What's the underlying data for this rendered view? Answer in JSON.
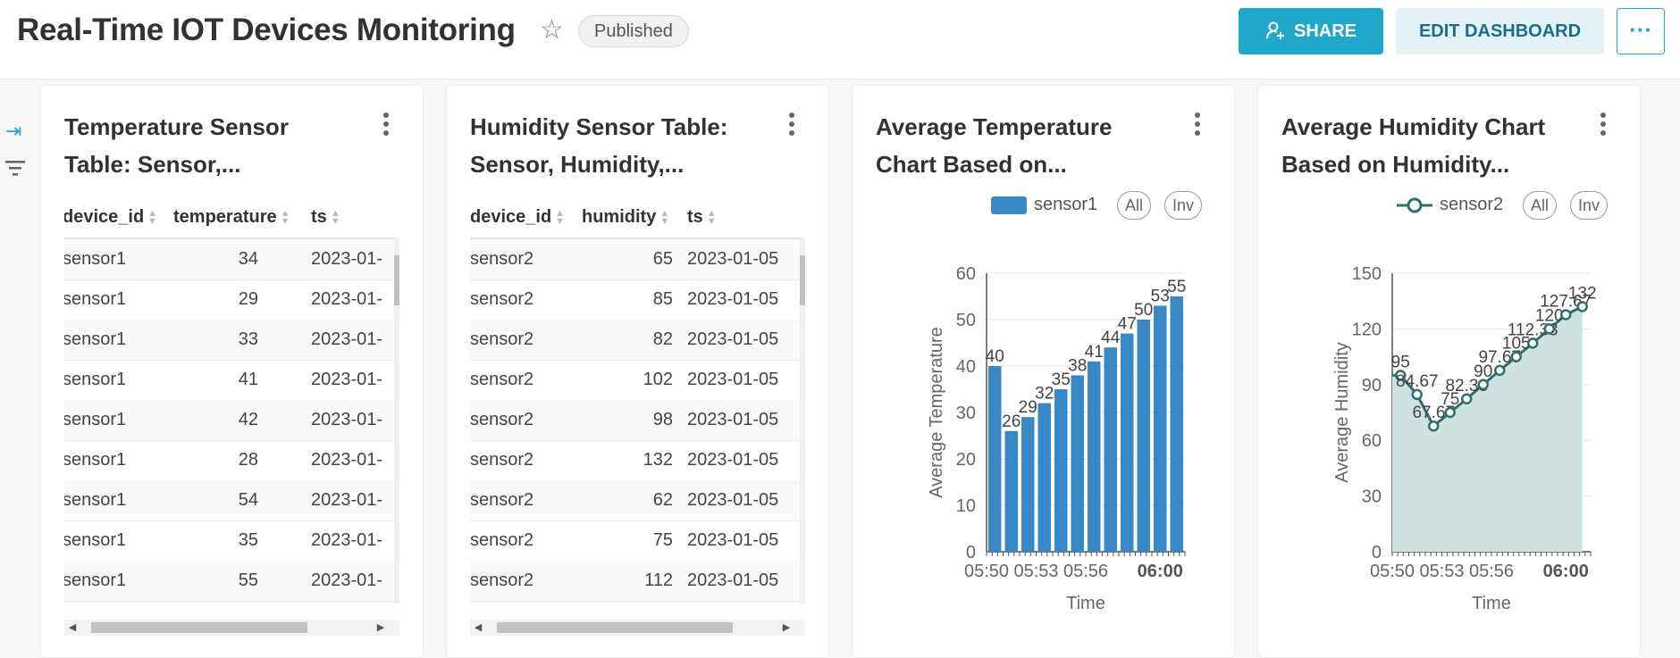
{
  "header": {
    "title": "Real-Time IOT Devices Monitoring",
    "badge": "Published",
    "share_label": "SHARE",
    "edit_label": "EDIT DASHBOARD",
    "more_label": "···"
  },
  "rail": {
    "expand_icon": "expand-icon",
    "filter_icon": "filter-icon"
  },
  "cards": [
    {
      "title": "Temperature Sensor Table: Sensor,...",
      "columns": [
        "device_id",
        "temperature",
        "ts"
      ],
      "rows": [
        [
          "sensor1",
          "34",
          "2023-01-"
        ],
        [
          "sensor1",
          "29",
          "2023-01-"
        ],
        [
          "sensor1",
          "33",
          "2023-01-"
        ],
        [
          "sensor1",
          "41",
          "2023-01-"
        ],
        [
          "sensor1",
          "42",
          "2023-01-"
        ],
        [
          "sensor1",
          "28",
          "2023-01-"
        ],
        [
          "sensor1",
          "54",
          "2023-01-"
        ],
        [
          "sensor1",
          "35",
          "2023-01-"
        ],
        [
          "sensor1",
          "55",
          "2023-01-"
        ]
      ]
    },
    {
      "title": "Humidity Sensor Table: Sensor, Humidity,...",
      "columns": [
        "device_id",
        "humidity",
        "ts"
      ],
      "rows": [
        [
          "sensor2",
          "65",
          "2023-01-05"
        ],
        [
          "sensor2",
          "85",
          "2023-01-05"
        ],
        [
          "sensor2",
          "82",
          "2023-01-05"
        ],
        [
          "sensor2",
          "102",
          "2023-01-05"
        ],
        [
          "sensor2",
          "98",
          "2023-01-05"
        ],
        [
          "sensor2",
          "132",
          "2023-01-05"
        ],
        [
          "sensor2",
          "62",
          "2023-01-05"
        ],
        [
          "sensor2",
          "75",
          "2023-01-05"
        ],
        [
          "sensor2",
          "112",
          "2023-01-05"
        ]
      ]
    },
    {
      "title": "Average Temperature Chart Based on...",
      "legend": {
        "series": "sensor1",
        "all": "All",
        "inv": "Inv"
      }
    },
    {
      "title": "Average Humidity Chart Based on Humidity...",
      "legend": {
        "series": "sensor2",
        "all": "All",
        "inv": "Inv"
      }
    }
  ],
  "chart_data": [
    {
      "type": "bar",
      "title": "",
      "xlabel": "Time",
      "ylabel": "Average Temperature",
      "x_ticks": [
        "05:50",
        "05:53",
        "05:56",
        "06:00"
      ],
      "x_ticks_bold": "06:00",
      "y_ticks": [
        0,
        10,
        20,
        30,
        40,
        50,
        60
      ],
      "ylim": [
        0,
        60
      ],
      "color": "#3a87c6",
      "series": [
        {
          "name": "sensor1",
          "values": [
            40,
            26,
            29,
            32,
            35,
            38,
            41,
            44,
            47,
            50,
            53,
            55
          ]
        }
      ],
      "data_labels": [
        "40",
        "26",
        "29",
        "32",
        "35",
        "38",
        "41",
        "44",
        "47",
        "50",
        "53",
        "55"
      ],
      "grid": true,
      "legend": "top-right"
    },
    {
      "type": "area",
      "title": "",
      "xlabel": "Time",
      "ylabel": "Average Humidity",
      "x_ticks": [
        "05:50",
        "05:53",
        "05:56",
        "06:00"
      ],
      "x_ticks_bold": "06:00",
      "y_ticks": [
        0,
        30,
        60,
        90,
        120,
        150
      ],
      "ylim": [
        0,
        150
      ],
      "color": "#2d6e6e",
      "fill": "#d0e1e1",
      "series": [
        {
          "name": "sensor2",
          "values": [
            95,
            84.67,
            67.67,
            75,
            82.33,
            90,
            97.67,
            105,
            112.33,
            120,
            127.67,
            132
          ]
        }
      ],
      "data_labels": [
        "95",
        "84.67",
        "67.67",
        "75",
        "82.33",
        "90",
        "97.67",
        "105",
        "112.33",
        "120",
        "127.67",
        "132"
      ],
      "grid": true,
      "legend": "top-right"
    }
  ]
}
